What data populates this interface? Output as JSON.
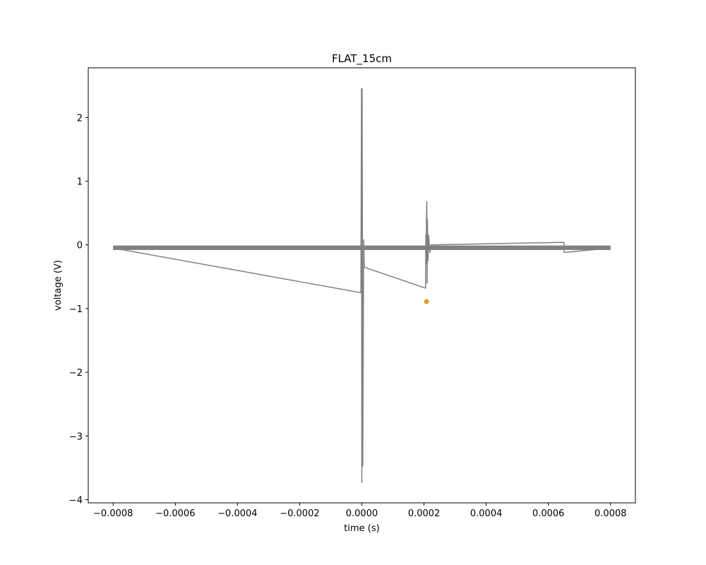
{
  "chart_data": {
    "type": "line",
    "title": "FLAT_15cm",
    "xlabel": "time (s)",
    "ylabel": "voltage (V)",
    "xlim": [
      -0.00088,
      0.00088
    ],
    "ylim": [
      -4.05,
      2.78
    ],
    "grid": false,
    "x_ticks": [
      -0.0008,
      -0.0006,
      -0.0004,
      -0.0002,
      0.0,
      0.0002,
      0.0004,
      0.0006,
      0.0008
    ],
    "x_tick_labels": [
      "−0.0008",
      "−0.0006",
      "−0.0004",
      "−0.0002",
      "0.0000",
      "0.0002",
      "0.0004",
      "0.0006",
      "0.0008"
    ],
    "y_ticks": [
      -4,
      -3,
      -2,
      -1,
      0,
      1,
      2
    ],
    "y_tick_labels": [
      "−4",
      "−3",
      "−2",
      "−1",
      "0",
      "1",
      "2"
    ],
    "series": [
      {
        "color": "#808080",
        "baseline": -0.05,
        "noise_band": [
          -0.08,
          -0.01
        ],
        "x_range": [
          -0.0008,
          0.0008
        ],
        "features": [
          {
            "x": -3e-06,
            "y": -0.75
          },
          {
            "x": -1e-06,
            "y": 2.45
          },
          {
            "x": 0.0,
            "y": -3.73
          },
          {
            "x": 1e-06,
            "y": 2.45
          },
          {
            "x": 3e-06,
            "y": -3.47
          },
          {
            "x": 6e-06,
            "y": 0.08
          },
          {
            "x": 8e-06,
            "y": -0.35
          },
          {
            "x": 0.000205,
            "y": -0.68
          },
          {
            "x": 0.000206,
            "y": 0.16
          },
          {
            "x": 0.000207,
            "y": -0.3
          },
          {
            "x": 0.000208,
            "y": 0.45
          },
          {
            "x": 0.000209,
            "y": 0.68
          },
          {
            "x": 0.00021,
            "y": -0.6
          },
          {
            "x": 0.000211,
            "y": 0.4
          },
          {
            "x": 0.000213,
            "y": -0.25
          },
          {
            "x": 0.000215,
            "y": 0.15
          },
          {
            "x": 0.000219,
            "y": -0.12
          },
          {
            "x": 0.000223,
            "y": 0.0
          },
          {
            "x": 0.00065,
            "y": 0.04
          },
          {
            "x": 0.000651,
            "y": -0.12
          }
        ]
      },
      {
        "type": "scatter",
        "color": "#DAA520",
        "points": [
          {
            "x": 0.000208,
            "y": -0.89
          }
        ]
      }
    ]
  }
}
